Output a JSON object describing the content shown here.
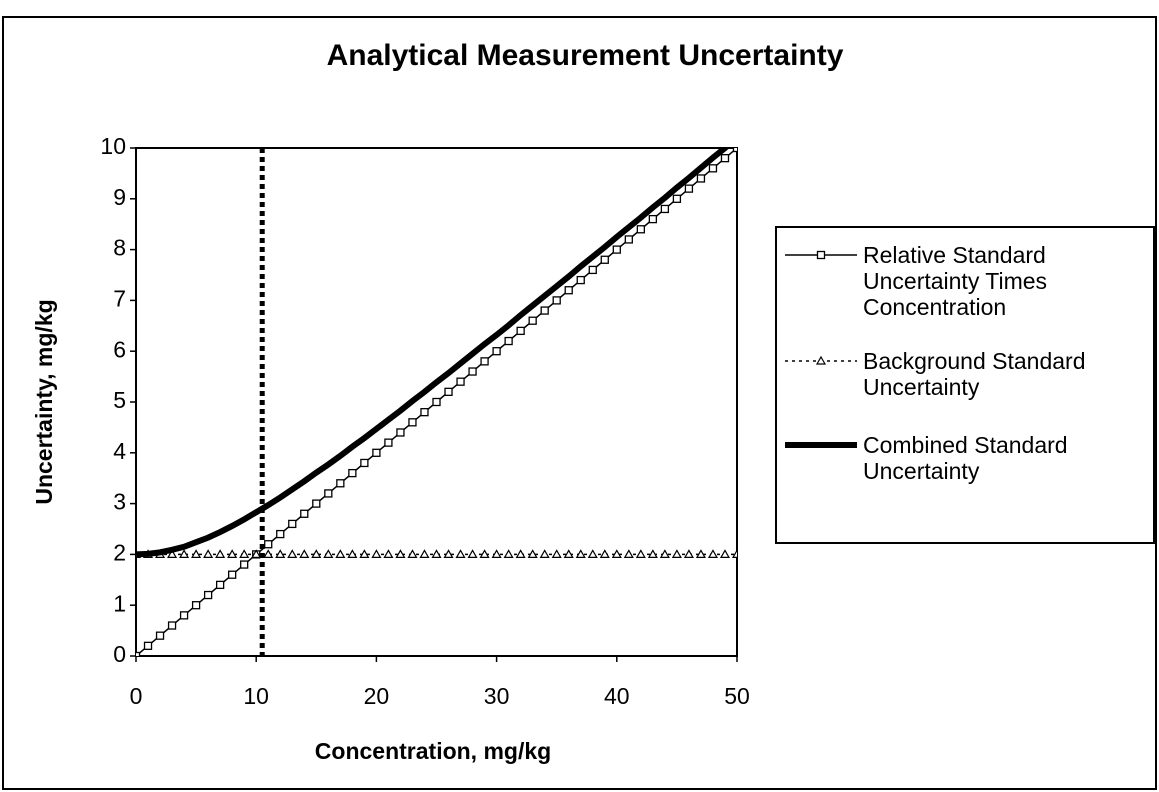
{
  "chart_data": {
    "type": "line",
    "title": "Analytical Measurement Uncertainty",
    "x_label": "Concentration, mg/kg",
    "y_label": "Uncertainty, mg/kg",
    "x": [
      0,
      1,
      2,
      3,
      4,
      5,
      6,
      7,
      8,
      9,
      10,
      11,
      12,
      13,
      14,
      15,
      16,
      17,
      18,
      19,
      20,
      21,
      22,
      23,
      24,
      25,
      26,
      27,
      28,
      29,
      30,
      31,
      32,
      33,
      34,
      35,
      36,
      37,
      38,
      39,
      40,
      41,
      42,
      43,
      44,
      45,
      46,
      47,
      48,
      49,
      50
    ],
    "series": [
      {
        "name": "Relative Standard Uncertainty Times Concentration",
        "color": "#000000",
        "line_style": "solid",
        "line_width": 1.5,
        "marker": "square",
        "values": [
          0,
          0.2,
          0.4,
          0.6,
          0.8,
          1,
          1.2,
          1.4,
          1.6,
          1.8,
          2,
          2.2,
          2.4,
          2.6,
          2.8,
          3,
          3.2,
          3.4,
          3.6,
          3.8,
          4,
          4.2,
          4.4,
          4.6,
          4.8,
          5,
          5.2,
          5.4,
          5.6,
          5.8,
          6,
          6.2,
          6.4,
          6.6,
          6.8,
          7,
          7.2,
          7.4,
          7.6,
          7.8,
          8,
          8.2,
          8.4,
          8.6,
          8.8,
          9,
          9.2,
          9.4,
          9.6,
          9.8,
          10
        ]
      },
      {
        "name": "Background Standard Uncertainty",
        "color": "#000000",
        "line_style": "dotted",
        "line_width": 1.5,
        "marker": "triangle",
        "values": [
          2,
          2,
          2,
          2,
          2,
          2,
          2,
          2,
          2,
          2,
          2,
          2,
          2,
          2,
          2,
          2,
          2,
          2,
          2,
          2,
          2,
          2,
          2,
          2,
          2,
          2,
          2,
          2,
          2,
          2,
          2,
          2,
          2,
          2,
          2,
          2,
          2,
          2,
          2,
          2,
          2,
          2,
          2,
          2,
          2,
          2,
          2,
          2,
          2,
          2,
          2
        ]
      },
      {
        "name": "Combined Standard Uncertainty",
        "color": "#000000",
        "line_style": "solid",
        "line_width": 6,
        "marker": "none",
        "values": [
          2,
          2.01,
          2.04,
          2.09,
          2.15,
          2.24,
          2.33,
          2.44,
          2.56,
          2.69,
          2.83,
          2.97,
          3.12,
          3.28,
          3.44,
          3.61,
          3.77,
          3.94,
          4.12,
          4.29,
          4.47,
          4.65,
          4.83,
          5.02,
          5.2,
          5.39,
          5.57,
          5.76,
          5.95,
          6.14,
          6.32,
          6.51,
          6.71,
          6.9,
          7.09,
          7.28,
          7.47,
          7.67,
          7.86,
          8.05,
          8.25,
          8.44,
          8.63,
          8.83,
          9.02,
          9.22,
          9.41,
          9.61,
          9.81,
          10,
          10.2
        ]
      }
    ],
    "reference_x": 10.5,
    "xlim": [
      0,
      50
    ],
    "xticks": [
      0,
      10,
      20,
      30,
      40,
      50
    ],
    "ylim": [
      0,
      10
    ],
    "yticks": [
      0,
      1,
      2,
      3,
      4,
      5,
      6,
      7,
      8,
      9,
      10
    ],
    "grid": false,
    "legend": "right"
  }
}
